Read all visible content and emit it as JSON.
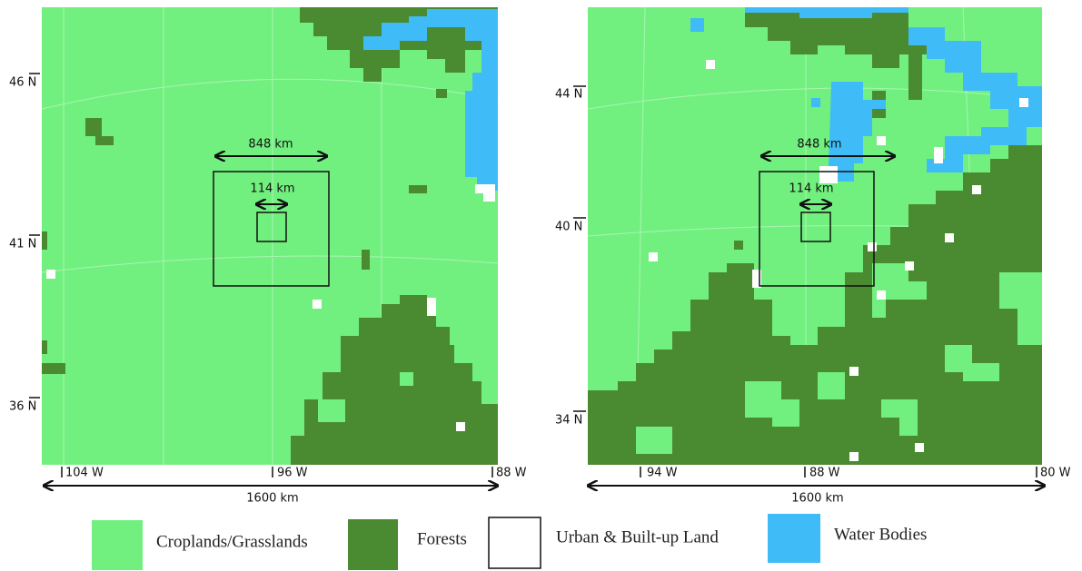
{
  "maps": [
    {
      "lat_labels": [
        "46 N",
        "41 N",
        "36 N"
      ],
      "lon_labels": [
        "104 W",
        "96 W",
        "88 W"
      ],
      "outer_box_label": "848 km",
      "inner_box_label": "114 km",
      "width_label": "1600 km"
    },
    {
      "lat_labels": [
        "44 N",
        "40 N",
        "34 N"
      ],
      "lon_labels": [
        "94 W",
        "88 W",
        "80 W"
      ],
      "outer_box_label": "848 km",
      "inner_box_label": "114 km",
      "width_label": "1600 km"
    }
  ],
  "legend": [
    "Croplands/Grasslands",
    "Forests",
    "Urban & Built-up Land",
    "Water Bodies"
  ]
}
